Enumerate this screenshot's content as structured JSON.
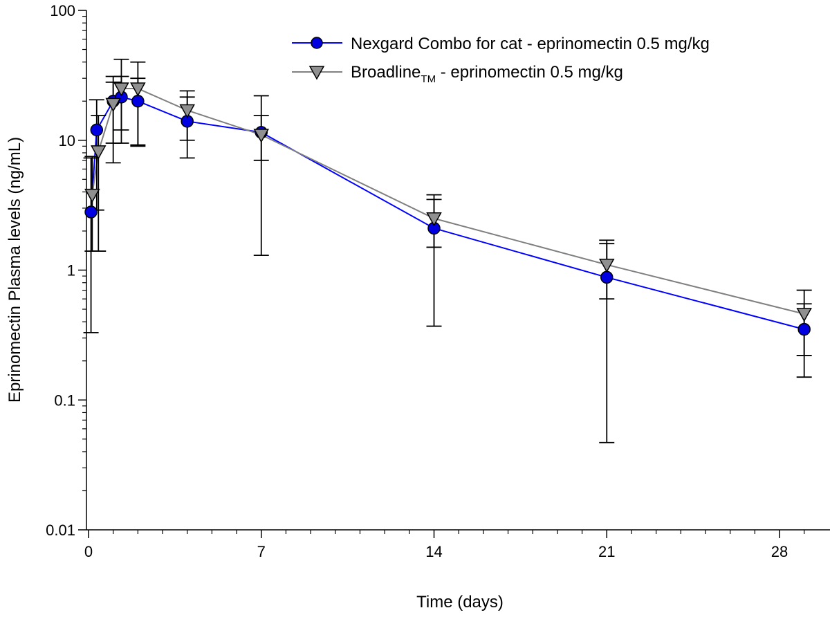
{
  "chart_data": {
    "type": "line",
    "xlabel": "Time (days)",
    "ylabel": "Eprinomectin Plasma levels (ng/mL)",
    "yscale": "log",
    "xlim": [
      0,
      30
    ],
    "ylim": [
      0.01,
      100
    ],
    "x_ticks": [
      0,
      7,
      14,
      21,
      28
    ],
    "x_tick_labels": [
      "0",
      "7",
      "14",
      "21",
      "28"
    ],
    "y_ticks": [
      0.01,
      0.1,
      1,
      10,
      100
    ],
    "y_tick_labels": [
      "0.01",
      "0.1",
      "1",
      "10",
      "100"
    ],
    "legend_position": "top-right",
    "series": [
      {
        "name": "Nexgard Combo for cat - eprinomectin 0.5 mg/kg",
        "color": "#0000ff",
        "marker": "circle",
        "marker_fill": "#0000e0",
        "points": [
          {
            "x": 0.1,
            "y": 2.8,
            "lo": 0.33,
            "hi": 7.3
          },
          {
            "x": 0.33,
            "y": 12,
            "lo": 2.9,
            "hi": 20.5
          },
          {
            "x": 1,
            "y": 20,
            "lo": 6.7,
            "hi": 31
          },
          {
            "x": 1.33,
            "y": 21.5,
            "lo": 12,
            "hi": 31
          },
          {
            "x": 2,
            "y": 20,
            "lo": 9.2,
            "hi": 30
          },
          {
            "x": 4,
            "y": 14,
            "lo": 7.3,
            "hi": 21.5
          },
          {
            "x": 7,
            "y": 11.5,
            "lo": 7,
            "hi": 15.5
          },
          {
            "x": 14,
            "y": 2.1,
            "lo": 0.37,
            "hi": 3.5
          },
          {
            "x": 21,
            "y": 0.88,
            "lo": 0.047,
            "hi": 1.6
          },
          {
            "x": 29,
            "y": 0.35,
            "lo": 0.15,
            "hi": 0.55
          }
        ]
      },
      {
        "name": "Broadline",
        "name_subscript": "TM",
        "name_suffix": " - eprinomectin 0.5 mg/kg",
        "color": "#808080",
        "marker": "triangle-down",
        "marker_fill": "#909090",
        "points": [
          {
            "x": 0.15,
            "y": 3.8,
            "lo": 1.4,
            "hi": 7.5
          },
          {
            "x": 0.4,
            "y": 8.2,
            "lo": 1.4,
            "hi": 15.5
          },
          {
            "x": 1,
            "y": 19,
            "lo": 9.5,
            "hi": 28
          },
          {
            "x": 1.33,
            "y": 25,
            "lo": 9.5,
            "hi": 42
          },
          {
            "x": 2,
            "y": 25,
            "lo": 9,
            "hi": 40
          },
          {
            "x": 4,
            "y": 17,
            "lo": 10,
            "hi": 24
          },
          {
            "x": 7,
            "y": 11,
            "lo": 1.3,
            "hi": 22
          },
          {
            "x": 14,
            "y": 2.5,
            "lo": 1.5,
            "hi": 3.8
          },
          {
            "x": 21,
            "y": 1.1,
            "lo": 0.6,
            "hi": 1.7
          },
          {
            "x": 29,
            "y": 0.46,
            "lo": 0.22,
            "hi": 0.7
          }
        ]
      }
    ]
  }
}
